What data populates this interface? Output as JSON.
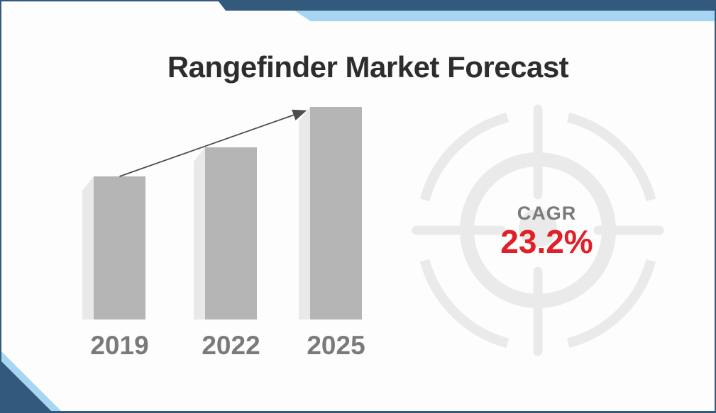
{
  "header": {
    "title": "Rangefinder Market Forecast"
  },
  "chart_data": {
    "type": "bar",
    "title": "Rangefinder Market Forecast",
    "categories": [
      "2019",
      "2022",
      "2025"
    ],
    "values": [
      202,
      243,
      300
    ],
    "value_note": "no numeric axis or data labels shown; values are relative bar heights in pixels",
    "xlabel": "",
    "ylabel": "",
    "grid": false,
    "legend": false,
    "annotations": [
      "upward trend arrow from top of 2019 bar to top of 2025 bar"
    ]
  },
  "cagr": {
    "label": "CAGR",
    "value": "23.2%"
  },
  "icons": {
    "watermark": "target-crosshair-icon"
  },
  "colors": {
    "accent_dark_blue": "#33597d",
    "accent_light_blue": "#a6d6f2",
    "bar_gray": "#b5b5b5",
    "bar_shadow_gray": "#e9e9e9",
    "watermark_gray": "#eaeaea",
    "title_text": "#2d2d2d",
    "muted_text": "#7a7a7a",
    "cagr_red": "#e11f26",
    "arrow_gray": "#4d4d4d",
    "background": "#fdfdfe"
  }
}
